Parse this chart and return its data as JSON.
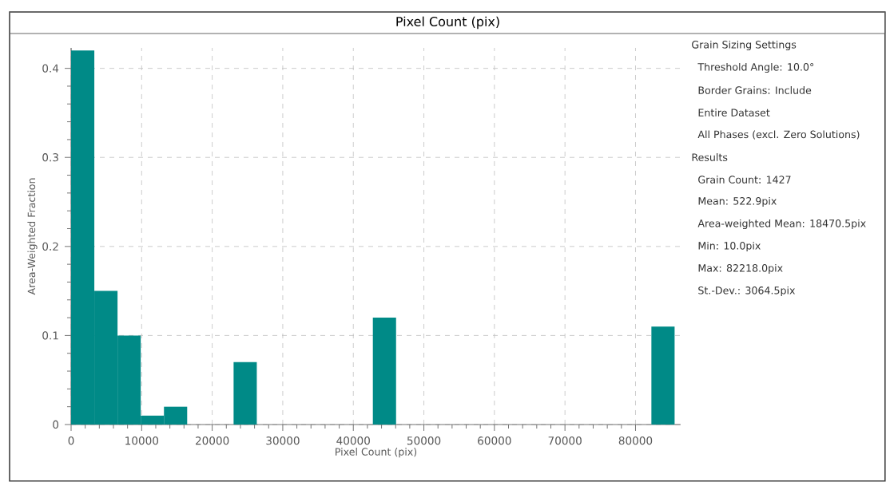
{
  "chart_data": {
    "type": "histogram",
    "title": "Pixel Count (pix)",
    "xlabel": "Pixel Count (pix)",
    "ylabel": "Area-Weighted Fraction",
    "bins": [
      0,
      3290,
      6580,
      9870,
      13160,
      16450,
      19740,
      23030,
      26320,
      29610,
      32900,
      36190,
      39480,
      42770,
      46060,
      49350,
      52640,
      55930,
      59220,
      62510,
      65800,
      69090,
      72380,
      75670,
      78960,
      82250,
      85540
    ],
    "values": [
      0.42,
      0.15,
      0.1,
      0.01,
      0.02,
      0,
      0,
      0.07,
      0,
      0,
      0,
      0,
      0,
      0.12,
      0,
      0,
      0,
      0,
      0,
      0,
      0,
      0,
      0,
      0,
      0,
      0.11
    ],
    "color": "#008a87",
    "xlim": [
      0,
      86400
    ],
    "ylim": [
      0,
      0.423
    ],
    "xticks": [
      0,
      10000,
      20000,
      30000,
      40000,
      50000,
      60000,
      70000,
      80000
    ],
    "yticks": [
      0,
      0.1,
      0.2,
      0.3,
      0.4
    ],
    "grid": true,
    "annotations": [
      "Grain Sizing Settings",
      "Threshold Angle: 10.0°",
      "Border Grains: Include",
      "Entire Dataset",
      "All Phases (excl. Zero Solutions)",
      "Results",
      "Grain Count: 1427",
      "Mean: 522.9pix",
      "Area-weighted Mean: 18470.5pix",
      "Min: 10.0pix",
      "Max: 82218.0pix",
      "St.-Dev.: 3064.5pix"
    ]
  }
}
